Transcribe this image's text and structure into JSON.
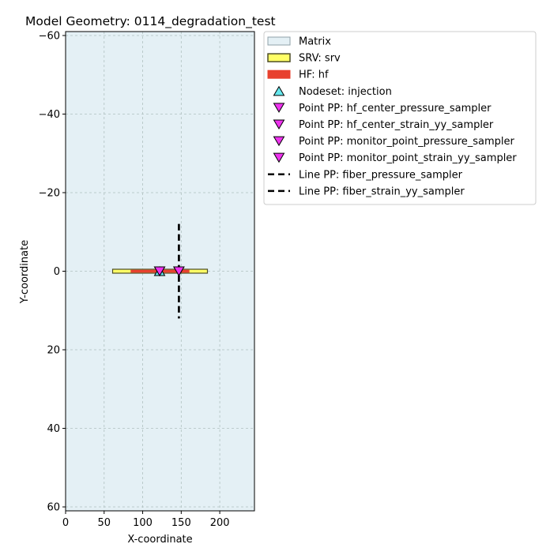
{
  "chart_data": {
    "type": "scatter",
    "title": "Model Geometry: 0114_degradation_test",
    "xlabel": "X-coordinate",
    "ylabel": "Y-coordinate",
    "xlim": [
      0,
      245
    ],
    "ylim": [
      61,
      -61
    ],
    "y_inverted": true,
    "grid": true,
    "legend_position": "outside-right-top",
    "x_ticks": [
      {
        "value": 0,
        "label": "0"
      },
      {
        "value": 50,
        "label": "50"
      },
      {
        "value": 100,
        "label": "100"
      },
      {
        "value": 150,
        "label": "150"
      },
      {
        "value": 200,
        "label": "200"
      }
    ],
    "y_ticks": [
      {
        "value": -60,
        "label": "−60"
      },
      {
        "value": -40,
        "label": "−40"
      },
      {
        "value": -20,
        "label": "−20"
      },
      {
        "value": 0,
        "label": "0"
      },
      {
        "value": 20,
        "label": "20"
      },
      {
        "value": 40,
        "label": "40"
      },
      {
        "value": 60,
        "label": "60"
      }
    ],
    "regions": [
      {
        "key": "matrix",
        "legend": "Matrix",
        "x": [
          0,
          245
        ],
        "y": [
          -61,
          61
        ],
        "fill": "#e4f0f5",
        "edge": "#8fa0a8"
      },
      {
        "key": "srv",
        "legend": "SRV: srv",
        "x": [
          61,
          184
        ],
        "y": [
          -0.5,
          0.5
        ],
        "fill": "#ffff66",
        "edge": "#4d4d26"
      },
      {
        "key": "hf",
        "legend": "HF: hf",
        "x": [
          85,
          160
        ],
        "y": [
          -0.25,
          0.25
        ],
        "fill": "#e8412e",
        "edge": "#e8412e"
      }
    ],
    "points": [
      {
        "key": "nodeset-injection",
        "legend": "Nodeset: injection",
        "x": [
          122
        ],
        "y": [
          0
        ],
        "marker": "triangle-up",
        "fill": "#66e8ee"
      },
      {
        "key": "pp-hf-center-pressure",
        "legend": "Point PP: hf_center_pressure_sampler",
        "x": [
          122
        ],
        "y": [
          0
        ],
        "marker": "triangle-down",
        "fill": "#ee33ee"
      },
      {
        "key": "pp-hf-center-strain",
        "legend": "Point PP: hf_center_strain_yy_sampler",
        "x": [
          122
        ],
        "y": [
          0
        ],
        "marker": "triangle-down",
        "fill": "#ee33ee"
      },
      {
        "key": "pp-monitor-pressure",
        "legend": "Point PP: monitor_point_pressure_sampler",
        "x": [
          147
        ],
        "y": [
          0
        ],
        "marker": "triangle-down",
        "fill": "#ee33ee"
      },
      {
        "key": "pp-monitor-strain",
        "legend": "Point PP: monitor_point_strain_yy_sampler",
        "x": [
          147
        ],
        "y": [
          0
        ],
        "marker": "triangle-down",
        "fill": "#ee33ee"
      }
    ],
    "lines": [
      {
        "key": "line-fiber-pressure",
        "legend": "Line PP: fiber_pressure_sampler",
        "x": [
          147,
          147
        ],
        "y": [
          -12,
          12
        ],
        "style": "dashed",
        "color": "#000000"
      },
      {
        "key": "line-fiber-strain",
        "legend": "Line PP: fiber_strain_yy_sampler",
        "x": [
          147,
          147
        ],
        "y": [
          -12,
          12
        ],
        "style": "dashed",
        "color": "#000000"
      }
    ]
  }
}
